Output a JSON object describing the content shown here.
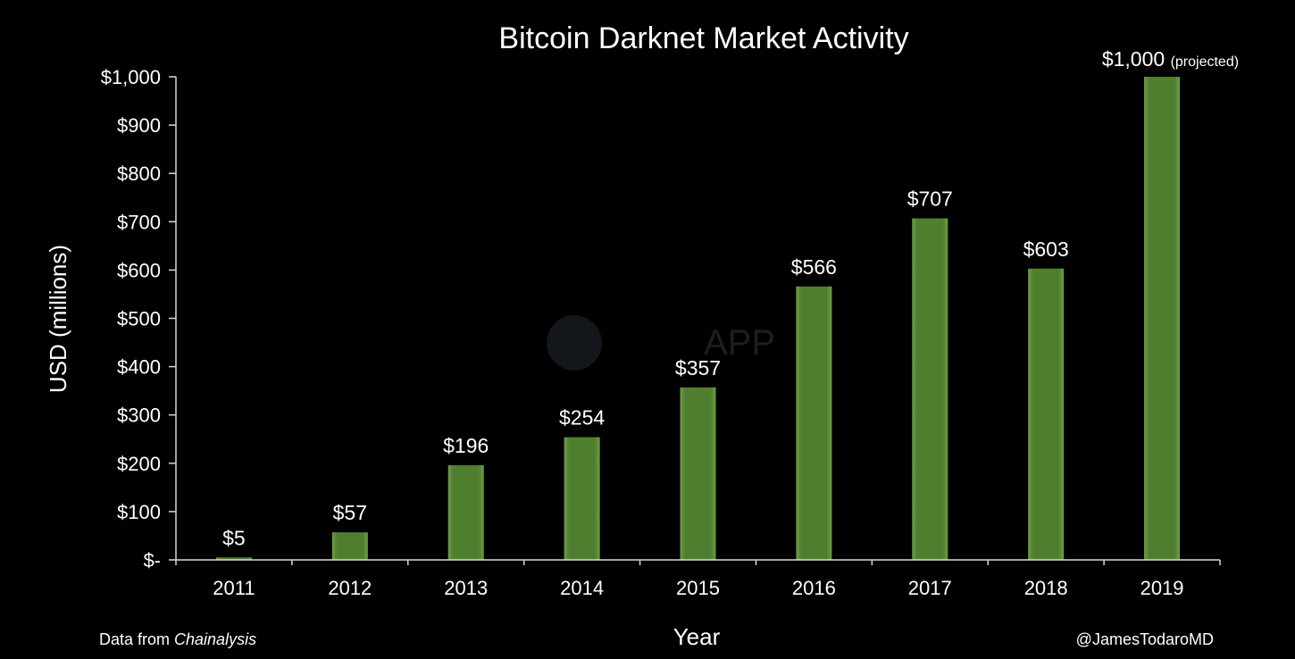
{
  "chart_data": {
    "type": "bar",
    "title": "Bitcoin Darknet Market Activity",
    "xlabel": "Year",
    "ylabel": "USD (millions)",
    "categories": [
      "2011",
      "2012",
      "2013",
      "2014",
      "2015",
      "2016",
      "2017",
      "2018",
      "2019"
    ],
    "values": [
      5,
      57,
      196,
      254,
      357,
      566,
      707,
      603,
      1000
    ],
    "value_labels": [
      "$5",
      "$57",
      "$196",
      "$254",
      "$357",
      "$566",
      "$707",
      "$603",
      "$1,000"
    ],
    "value_notes": [
      "",
      "",
      "",
      "",
      "",
      "",
      "",
      "",
      "(projected)"
    ],
    "ylim": [
      0,
      1000
    ],
    "yticks": [
      0,
      100,
      200,
      300,
      400,
      500,
      600,
      700,
      800,
      900,
      1000
    ],
    "ytick_labels": [
      "$-",
      "$100",
      "$200",
      "$300",
      "$400",
      "$500",
      "$600",
      "$700",
      "$800",
      "$900",
      "$1,000"
    ],
    "grid": false,
    "bar_color": "#4e7e2e",
    "background": "#000000"
  },
  "footer": {
    "source_prefix": "Data from ",
    "source_name": "Chainalysis",
    "credit": "@JamesTodaroMD"
  },
  "watermark": {
    "text": "APP"
  }
}
